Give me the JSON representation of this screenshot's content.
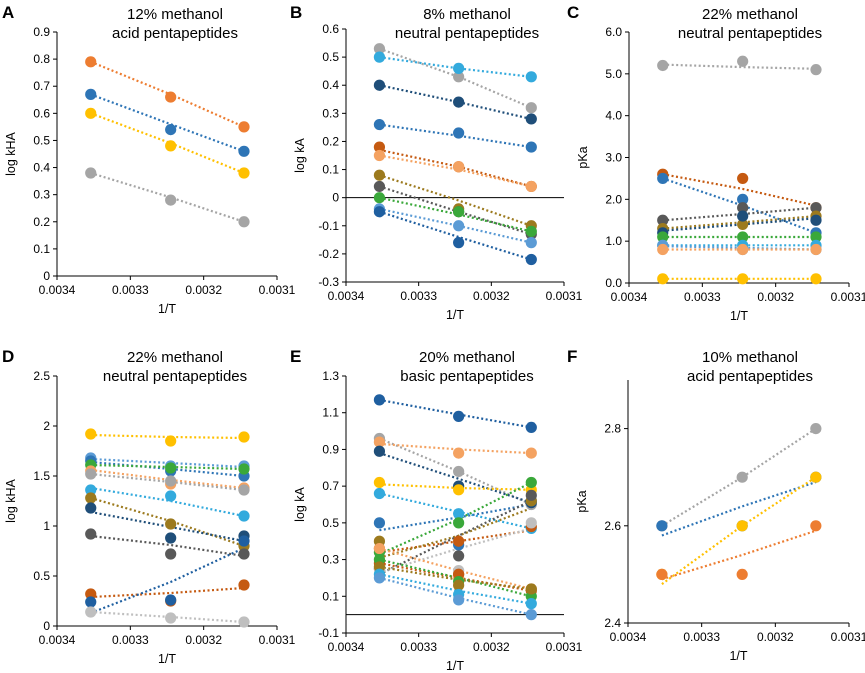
{
  "figure": {
    "panel_count": 6
  },
  "chart_data": [
    {
      "panel": "A",
      "type": "scatter",
      "title": [
        "12% methanol",
        "acid pentapeptides"
      ],
      "xlabel": "1/T",
      "ylabel": "log kHA",
      "xlim": [
        0.0034,
        0.0031
      ],
      "ylim": [
        0,
        0.9
      ],
      "xticks": [
        "0.0034",
        "0.0033",
        "0.0032",
        "0.0031"
      ],
      "yticks": [
        "0",
        "0.1",
        "0.2",
        "0.3",
        "0.4",
        "0.5",
        "0.6",
        "0.7",
        "0.8",
        "0.9"
      ],
      "x": [
        0.003354,
        0.003245,
        0.003145
      ],
      "series": [
        {
          "color": "#ED7D31",
          "values": [
            0.79,
            0.66,
            0.55
          ],
          "fit": [
            0.79,
            0.67,
            0.55
          ]
        },
        {
          "color": "#2E75B6",
          "values": [
            0.67,
            0.54,
            0.46
          ],
          "fit": [
            0.67,
            0.56,
            0.46
          ]
        },
        {
          "color": "#FFC000",
          "values": [
            0.6,
            0.48,
            0.38
          ],
          "fit": [
            0.6,
            0.49,
            0.38
          ]
        },
        {
          "color": "#A5A5A5",
          "values": [
            0.38,
            0.28,
            0.2
          ],
          "fit": [
            0.38,
            0.29,
            0.2
          ]
        }
      ]
    },
    {
      "panel": "B",
      "type": "scatter",
      "title": [
        "8% methanol",
        "neutral pentapeptides"
      ],
      "xlabel": "1/T",
      "ylabel": "log kA",
      "xlim": [
        0.0034,
        0.0031
      ],
      "ylim": [
        -0.3,
        0.6
      ],
      "hline": 0,
      "xticks": [
        "0.0034",
        "0.0033",
        "0.0032",
        "0.0031"
      ],
      "yticks": [
        "-0.3",
        "-0.2",
        "-0.1",
        "0",
        "0.1",
        "0.2",
        "0.3",
        "0.4",
        "0.5",
        "0.6"
      ],
      "x": [
        0.003354,
        0.003245,
        0.003145
      ],
      "series": [
        {
          "color": "#A5A5A5",
          "values": [
            0.53,
            0.43,
            0.32
          ],
          "fit": [
            0.53,
            0.43,
            0.32
          ]
        },
        {
          "color": "#33AADD",
          "values": [
            0.5,
            0.46,
            0.43
          ],
          "fit": [
            0.5,
            0.46,
            0.43
          ]
        },
        {
          "color": "#1F4E79",
          "values": [
            0.4,
            0.34,
            0.28
          ],
          "fit": [
            0.4,
            0.34,
            0.28
          ]
        },
        {
          "color": "#2E75B6",
          "values": [
            0.26,
            0.23,
            0.18
          ],
          "fit": [
            0.26,
            0.22,
            0.18
          ]
        },
        {
          "color": "#C55A11",
          "values": [
            0.18,
            0.11,
            0.04
          ],
          "fit": [
            0.17,
            0.11,
            0.04
          ]
        },
        {
          "color": "#F4A261",
          "values": [
            0.15,
            0.11,
            0.04
          ],
          "fit": [
            0.15,
            0.1,
            0.04
          ]
        },
        {
          "color": "#9C7A1E",
          "values": [
            0.08,
            -0.04,
            -0.1
          ],
          "fit": [
            0.08,
            -0.01,
            -0.1
          ]
        },
        {
          "color": "#595959",
          "values": [
            0.04,
            -0.05,
            -0.13
          ],
          "fit": [
            0.04,
            -0.05,
            -0.13
          ]
        },
        {
          "color": "#3AA83A",
          "values": [
            0.0,
            -0.05,
            -0.12
          ],
          "fit": [
            0.0,
            -0.06,
            -0.12
          ]
        },
        {
          "color": "#5B9BD5",
          "values": [
            -0.04,
            -0.1,
            -0.16
          ],
          "fit": [
            -0.04,
            -0.1,
            -0.16
          ]
        },
        {
          "color": "#1F5FA0",
          "values": [
            -0.05,
            -0.16,
            -0.22
          ],
          "fit": [
            -0.05,
            -0.14,
            -0.22
          ]
        }
      ]
    },
    {
      "panel": "C",
      "type": "scatter",
      "title": [
        "22% methanol",
        "neutral pentapeptides"
      ],
      "xlabel": "1/T",
      "ylabel": "pKa",
      "xlim": [
        0.0034,
        0.0031
      ],
      "ylim": [
        0,
        6
      ],
      "xticks": [
        "0.0034",
        "0.0033",
        "0.0032",
        "0.0031"
      ],
      "yticks": [
        "0.0",
        "1.0",
        "2.0",
        "3.0",
        "4.0",
        "5.0",
        "6.0"
      ],
      "x": [
        0.003354,
        0.003245,
        0.003145
      ],
      "series": [
        {
          "color": "#A5A5A5",
          "values": [
            5.2,
            5.3,
            5.1
          ],
          "fit": [
            5.22,
            5.16,
            5.12
          ]
        },
        {
          "color": "#C55A11",
          "values": [
            2.6,
            2.5,
            1.8
          ],
          "fit": [
            2.6,
            2.25,
            1.85
          ]
        },
        {
          "color": "#2E75B6",
          "values": [
            2.5,
            2.0,
            1.2
          ],
          "fit": [
            2.5,
            1.85,
            1.2
          ]
        },
        {
          "color": "#595959",
          "values": [
            1.5,
            1.8,
            1.8
          ],
          "fit": [
            1.5,
            1.65,
            1.8
          ]
        },
        {
          "color": "#9C7A1E",
          "values": [
            1.3,
            1.4,
            1.6
          ],
          "fit": [
            1.3,
            1.45,
            1.6
          ]
        },
        {
          "color": "#1F4E79",
          "values": [
            1.2,
            1.6,
            1.5
          ],
          "fit": [
            1.25,
            1.4,
            1.55
          ]
        },
        {
          "color": "#3AA83A",
          "values": [
            1.1,
            1.1,
            1.1
          ],
          "fit": [
            1.1,
            1.1,
            1.1
          ]
        },
        {
          "color": "#33AADD",
          "values": [
            0.9,
            0.9,
            0.9
          ],
          "fit": [
            0.9,
            0.9,
            0.9
          ]
        },
        {
          "color": "#5B9BD5",
          "values": [
            0.9,
            0.8,
            0.8
          ],
          "fit": [
            0.88,
            0.84,
            0.8
          ]
        },
        {
          "color": "#F4A261",
          "values": [
            0.8,
            0.8,
            0.8
          ],
          "fit": [
            0.8,
            0.8,
            0.8
          ]
        },
        {
          "color": "#FFC000",
          "values": [
            0.1,
            0.1,
            0.1
          ],
          "fit": [
            0.1,
            0.1,
            0.1
          ]
        }
      ]
    },
    {
      "panel": "D",
      "type": "scatter",
      "title": [
        "22% methanol",
        "neutral pentapeptides"
      ],
      "xlabel": "1/T",
      "ylabel": "log kHA",
      "xlim": [
        0.0034,
        0.0031
      ],
      "ylim": [
        0,
        2.5
      ],
      "xticks": [
        "0.0034",
        "0.0033",
        "0.0032",
        "0.0031"
      ],
      "yticks": [
        "0",
        "0.5",
        "1",
        "1.5",
        "2",
        "2.5"
      ],
      "x": [
        0.003354,
        0.003245,
        0.003145
      ],
      "series": [
        {
          "color": "#FFC000",
          "values": [
            1.92,
            1.85,
            1.89
          ],
          "fit": [
            1.91,
            1.89,
            1.88
          ]
        },
        {
          "color": "#5B9BD5",
          "values": [
            1.68,
            1.6,
            1.6
          ],
          "fit": [
            1.67,
            1.63,
            1.59
          ]
        },
        {
          "color": "#2E75B6",
          "values": [
            1.65,
            1.55,
            1.5
          ],
          "fit": [
            1.64,
            1.57,
            1.5
          ]
        },
        {
          "color": "#3AA83A",
          "values": [
            1.61,
            1.58,
            1.57
          ],
          "fit": [
            1.61,
            1.59,
            1.57
          ]
        },
        {
          "color": "#F4A261",
          "values": [
            1.55,
            1.42,
            1.38
          ],
          "fit": [
            1.56,
            1.46,
            1.38
          ]
        },
        {
          "color": "#A5A5A5",
          "values": [
            1.52,
            1.45,
            1.36
          ],
          "fit": [
            1.52,
            1.44,
            1.36
          ]
        },
        {
          "color": "#33AADD",
          "values": [
            1.36,
            1.3,
            1.1
          ],
          "fit": [
            1.38,
            1.25,
            1.1
          ]
        },
        {
          "color": "#9C7A1E",
          "values": [
            1.28,
            1.02,
            0.8
          ],
          "fit": [
            1.28,
            1.05,
            0.8
          ]
        },
        {
          "color": "#1F4E79",
          "values": [
            1.18,
            0.88,
            0.9
          ],
          "fit": [
            1.14,
            0.99,
            0.85
          ]
        },
        {
          "color": "#595959",
          "values": [
            0.92,
            0.72,
            0.72
          ],
          "fit": [
            0.9,
            0.81,
            0.7
          ]
        },
        {
          "color": "#C55A11",
          "values": [
            0.32,
            0.25,
            0.41
          ],
          "fit": [
            0.29,
            0.33,
            0.38
          ]
        },
        {
          "color": "#1F5FA0",
          "values": [
            0.24,
            0.26,
            0.85
          ],
          "fit": [
            0.13,
            0.44,
            0.78
          ]
        },
        {
          "color": "#BFBFBF",
          "values": [
            0.14,
            0.08,
            0.04
          ],
          "fit": [
            0.14,
            0.09,
            0.04
          ]
        }
      ]
    },
    {
      "panel": "E",
      "type": "scatter",
      "title": [
        "20% methanol",
        "basic pentapeptides"
      ],
      "xlabel": "1/T",
      "ylabel": "log kA",
      "xlim": [
        0.0034,
        0.0031
      ],
      "ylim": [
        -0.1,
        1.3
      ],
      "hline": 0,
      "xticks": [
        "0.0034",
        "0.0033",
        "0.0032",
        "0.0031"
      ],
      "yticks": [
        "-0.1",
        "0.1",
        "0.3",
        "0.5",
        "0.7",
        "0.9",
        "1.1",
        "1.3"
      ],
      "x": [
        0.003354,
        0.003245,
        0.003145
      ],
      "series": [
        {
          "color": "#1F5FA0",
          "values": [
            1.17,
            1.08,
            1.02
          ],
          "fit": [
            1.17,
            1.09,
            1.02
          ]
        },
        {
          "color": "#A5A5A5",
          "values": [
            0.96,
            0.78,
            0.6
          ],
          "fit": [
            0.96,
            0.78,
            0.6
          ]
        },
        {
          "color": "#F4A261",
          "values": [
            0.94,
            0.88,
            0.88
          ],
          "fit": [
            0.93,
            0.9,
            0.88
          ]
        },
        {
          "color": "#1F4E79",
          "values": [
            0.89,
            0.7,
            0.61
          ],
          "fit": [
            0.88,
            0.74,
            0.61
          ]
        },
        {
          "color": "#FFC000",
          "values": [
            0.72,
            0.68,
            0.68
          ],
          "fit": [
            0.71,
            0.69,
            0.68
          ]
        },
        {
          "color": "#33AADD",
          "values": [
            0.66,
            0.55,
            0.47
          ],
          "fit": [
            0.66,
            0.56,
            0.47
          ]
        },
        {
          "color": "#2E75B6",
          "values": [
            0.5,
            0.38,
            0.62
          ],
          "fit": [
            0.46,
            0.53,
            0.6
          ]
        },
        {
          "color": "#C55A11",
          "values": [
            0.36,
            0.4,
            0.48
          ],
          "fit": [
            0.34,
            0.4,
            0.46
          ]
        },
        {
          "color": "#9C7A1E",
          "values": [
            0.4,
            0.22,
            0.62
          ],
          "fit": [
            0.31,
            0.43,
            0.58
          ]
        },
        {
          "color": "#3AA83A",
          "values": [
            0.34,
            0.5,
            0.72
          ],
          "fit": [
            0.33,
            0.52,
            0.72
          ]
        },
        {
          "color": "#595959",
          "values": [
            0.25,
            0.32,
            0.65
          ],
          "fit": [
            0.22,
            0.43,
            0.62
          ]
        },
        {
          "color": "#BFBFBF",
          "values": [
            0.25,
            0.24,
            0.5
          ],
          "fit": [
            0.23,
            0.36,
            0.47
          ]
        },
        {
          "color": "#F4A261",
          "values": [
            0.36,
            0.2,
            0.14
          ],
          "fit": [
            0.36,
            0.24,
            0.14
          ]
        },
        {
          "color": "#C55A11",
          "values": [
            0.28,
            0.22,
            0.13
          ],
          "fit": [
            0.28,
            0.2,
            0.13
          ]
        },
        {
          "color": "#3AA83A",
          "values": [
            0.3,
            0.18,
            0.1
          ],
          "fit": [
            0.3,
            0.2,
            0.1
          ]
        },
        {
          "color": "#9C7A1E",
          "values": [
            0.26,
            0.16,
            0.14
          ],
          "fit": [
            0.26,
            0.19,
            0.14
          ]
        },
        {
          "color": "#33AADD",
          "values": [
            0.22,
            0.11,
            0.06
          ],
          "fit": [
            0.22,
            0.13,
            0.06
          ]
        },
        {
          "color": "#5B9BD5",
          "values": [
            0.2,
            0.08,
            0.0
          ],
          "fit": [
            0.2,
            0.09,
            0.0
          ]
        }
      ]
    },
    {
      "panel": "F",
      "type": "scatter",
      "title": [
        "10% methanol",
        "acid pentapeptides"
      ],
      "xlabel": "1/T",
      "ylabel": "pKa",
      "xlim": [
        0.0034,
        0.0031
      ],
      "ylim": [
        2.4,
        2.9
      ],
      "xticks": [
        "0.0034",
        "0.0033",
        "0.0032",
        "0.0031"
      ],
      "yticks": [
        "2.4",
        "2.6",
        "2.8"
      ],
      "x": [
        0.003354,
        0.003245,
        0.003145
      ],
      "series": [
        {
          "color": "#A5A5A5",
          "values": [
            2.6,
            2.7,
            2.8
          ],
          "fit": [
            2.6,
            2.7,
            2.8
          ]
        },
        {
          "color": "#2E75B6",
          "values": [
            2.6,
            2.6,
            2.7
          ],
          "fit": [
            2.58,
            2.64,
            2.69
          ]
        },
        {
          "color": "#FFC000",
          "values": [
            2.5,
            2.6,
            2.7
          ],
          "fit": [
            2.48,
            2.6,
            2.7
          ]
        },
        {
          "color": "#ED7D31",
          "values": [
            2.5,
            2.5,
            2.6
          ],
          "fit": [
            2.49,
            2.54,
            2.59
          ]
        }
      ]
    }
  ]
}
